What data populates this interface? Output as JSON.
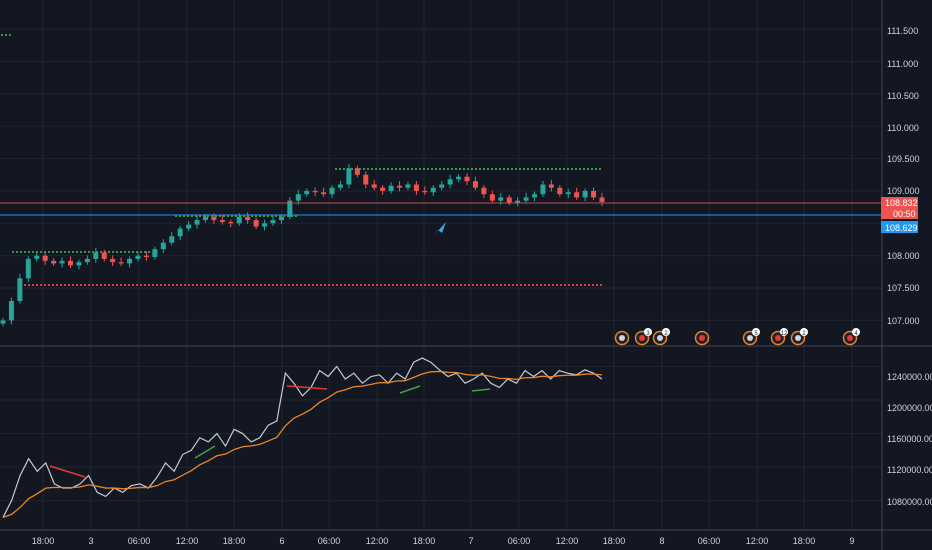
{
  "colors": {
    "background": "#131722",
    "grid": "#1f2430",
    "separator": "#434651",
    "up": "#26a69a",
    "down": "#ef5350",
    "indicator_line": "#c8cad0",
    "indicator_ma": "#e8852a",
    "blue_line": "#2196f3",
    "arrow": "#3ea6d8",
    "dots_green": "#2e9b4a",
    "dots_red": "#e03a3a",
    "divergence_red": "#e53935",
    "divergence_green": "#43a047"
  },
  "price_axis": {
    "labels": [
      "111.500",
      "111.000",
      "110.500",
      "110.000",
      "109.500",
      "109.000",
      "108.000",
      "107.500",
      "107.000"
    ],
    "range": [
      106.62,
      111.95
    ]
  },
  "price_tags": {
    "last_price": "108.832",
    "countdown": "00:50",
    "blue_line_price": "108.629"
  },
  "indicator_axis": {
    "labels": [
      "1240000.000",
      "1200000.000",
      "1160000.000",
      "1120000.000",
      "1080000.000"
    ],
    "range": [
      1045000,
      1262000
    ]
  },
  "time_axis": {
    "labels": [
      "18:00",
      "3",
      "06:00",
      "12:00",
      "18:00",
      "6",
      "06:00",
      "12:00",
      "18:00",
      "7",
      "06:00",
      "12:00",
      "18:00",
      "8",
      "06:00",
      "12:00",
      "18:00",
      "9"
    ]
  },
  "event_badges": [
    "",
    "3",
    "2",
    "",
    "5",
    "12",
    "2",
    "4"
  ],
  "chart_data": {
    "type": "candlestick",
    "price_levels": {
      "last": 108.832,
      "blue_line": 108.629,
      "upper_dotted": 109.33,
      "lower_dotted": 107.55,
      "mid_dotted": 108.62
    },
    "indicator_series_name": "",
    "close_series": [
      107.0,
      107.3,
      107.65,
      107.95,
      108.0,
      107.92,
      107.88,
      107.92,
      107.85,
      107.9,
      107.95,
      108.05,
      107.95,
      107.9,
      107.88,
      107.95,
      108.0,
      107.98,
      108.1,
      108.2,
      108.3,
      108.42,
      108.48,
      108.55,
      108.6,
      108.55,
      108.52,
      108.5,
      108.6,
      108.55,
      108.45,
      108.5,
      108.55,
      108.6,
      108.85,
      108.95,
      109.0,
      108.98,
      108.95,
      109.05,
      109.1,
      109.35,
      109.25,
      109.1,
      109.05,
      109.0,
      109.08,
      109.05,
      109.1,
      109.0,
      108.98,
      109.05,
      109.1,
      109.18,
      109.22,
      109.15,
      109.05,
      108.95,
      108.85,
      108.9,
      108.82,
      108.85,
      108.9,
      108.95,
      109.1,
      109.05,
      108.95,
      108.98,
      108.9,
      109.0,
      108.9,
      108.83
    ]
  }
}
